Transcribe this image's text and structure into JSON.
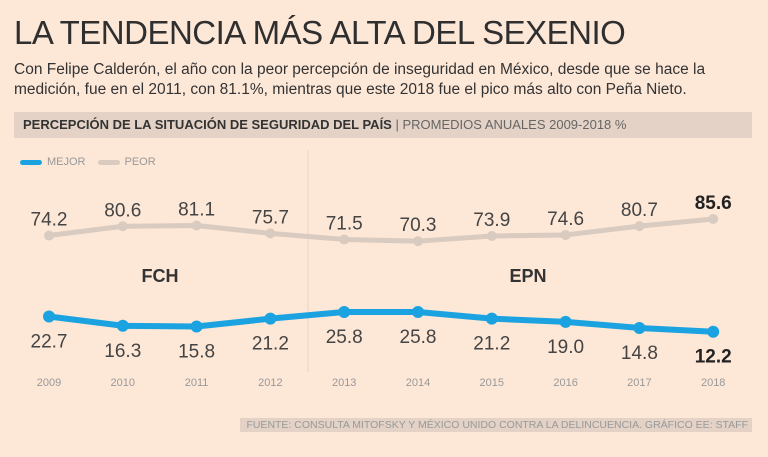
{
  "title": "LA TENDENCIA MÁS ALTA DEL SEXENIO",
  "subtitle": "Con Felipe Calderón, el año con la peor percepción de inseguridad en México, desde que se hace la medición, fue en el 2011, con 81.1%, mientras que este 2018 fue el pico más alto con Peña Nieto.",
  "bar": {
    "bold": "PERCEPCIÓN DE LA SITUACIÓN DE SEGURIDAD DEL PAÍS",
    "sep": " | ",
    "light": "PROMEDIOS ANUALES 2009-2018 %"
  },
  "footer": "FUENTE: CONSULTA MITOFSKY Y MÉXICO UNIDO CONTRA LA DELINCUENCIA. GRÁFICO EE: STAFF",
  "chart_data": {
    "type": "line",
    "categories": [
      "2009",
      "2010",
      "2011",
      "2012",
      "2013",
      "2014",
      "2015",
      "2016",
      "2017",
      "2018"
    ],
    "series": [
      {
        "name": "MEJOR",
        "color": "#1aa3e0",
        "values": [
          22.7,
          16.3,
          15.8,
          21.2,
          25.8,
          25.8,
          21.2,
          19.0,
          14.8,
          12.2
        ]
      },
      {
        "name": "PEOR",
        "color": "#d9cbbf",
        "values": [
          74.2,
          80.6,
          81.1,
          75.7,
          71.5,
          70.3,
          73.9,
          74.6,
          80.7,
          85.6
        ]
      }
    ],
    "annotations": [
      "FCH",
      "EPN"
    ]
  }
}
